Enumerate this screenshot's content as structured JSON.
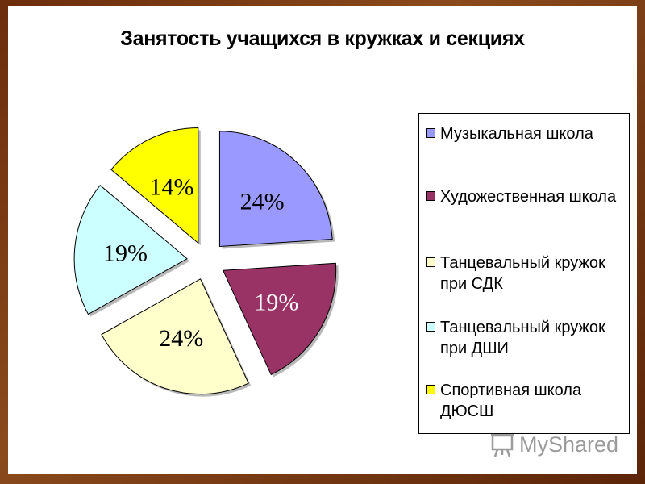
{
  "chart_data": {
    "type": "pie",
    "title": "Занятость учащихся в кружках и секциях",
    "slices": [
      {
        "name": "Музыкальная школа",
        "value": 24,
        "label": "24%",
        "color": "#9999ff"
      },
      {
        "name": "Художественная школа",
        "value": 19,
        "label": "19%",
        "color": "#993366"
      },
      {
        "name": "Танцевальный кружок при СДК",
        "value": 24,
        "label": "24%",
        "color": "#ffffcc"
      },
      {
        "name": "Танцевальный кружок при ДШИ",
        "value": 19,
        "label": "19%",
        "color": "#ccffff"
      },
      {
        "name": "Спортивная школа ДЮСШ",
        "value": 14,
        "label": "14%",
        "color": "#ffff00"
      }
    ],
    "legend_position": "right"
  },
  "legend": {
    "items": [
      {
        "lines": [
          "Музыкальная школа"
        ],
        "color": "#9999ff"
      },
      {
        "lines": [
          "Художественная школа"
        ],
        "color": "#993366"
      },
      {
        "lines": [
          "Танцевальный кружок",
          "при СДК"
        ],
        "color": "#ffffcc"
      },
      {
        "lines": [
          "Танцевальный кружок",
          "при ДШИ"
        ],
        "color": "#ccffff"
      },
      {
        "lines": [
          "Спортивная школа",
          "ДЮСШ"
        ],
        "color": "#ffff00"
      }
    ]
  },
  "watermark": {
    "text": "MyShared",
    "icon": "presentation-board-icon"
  }
}
